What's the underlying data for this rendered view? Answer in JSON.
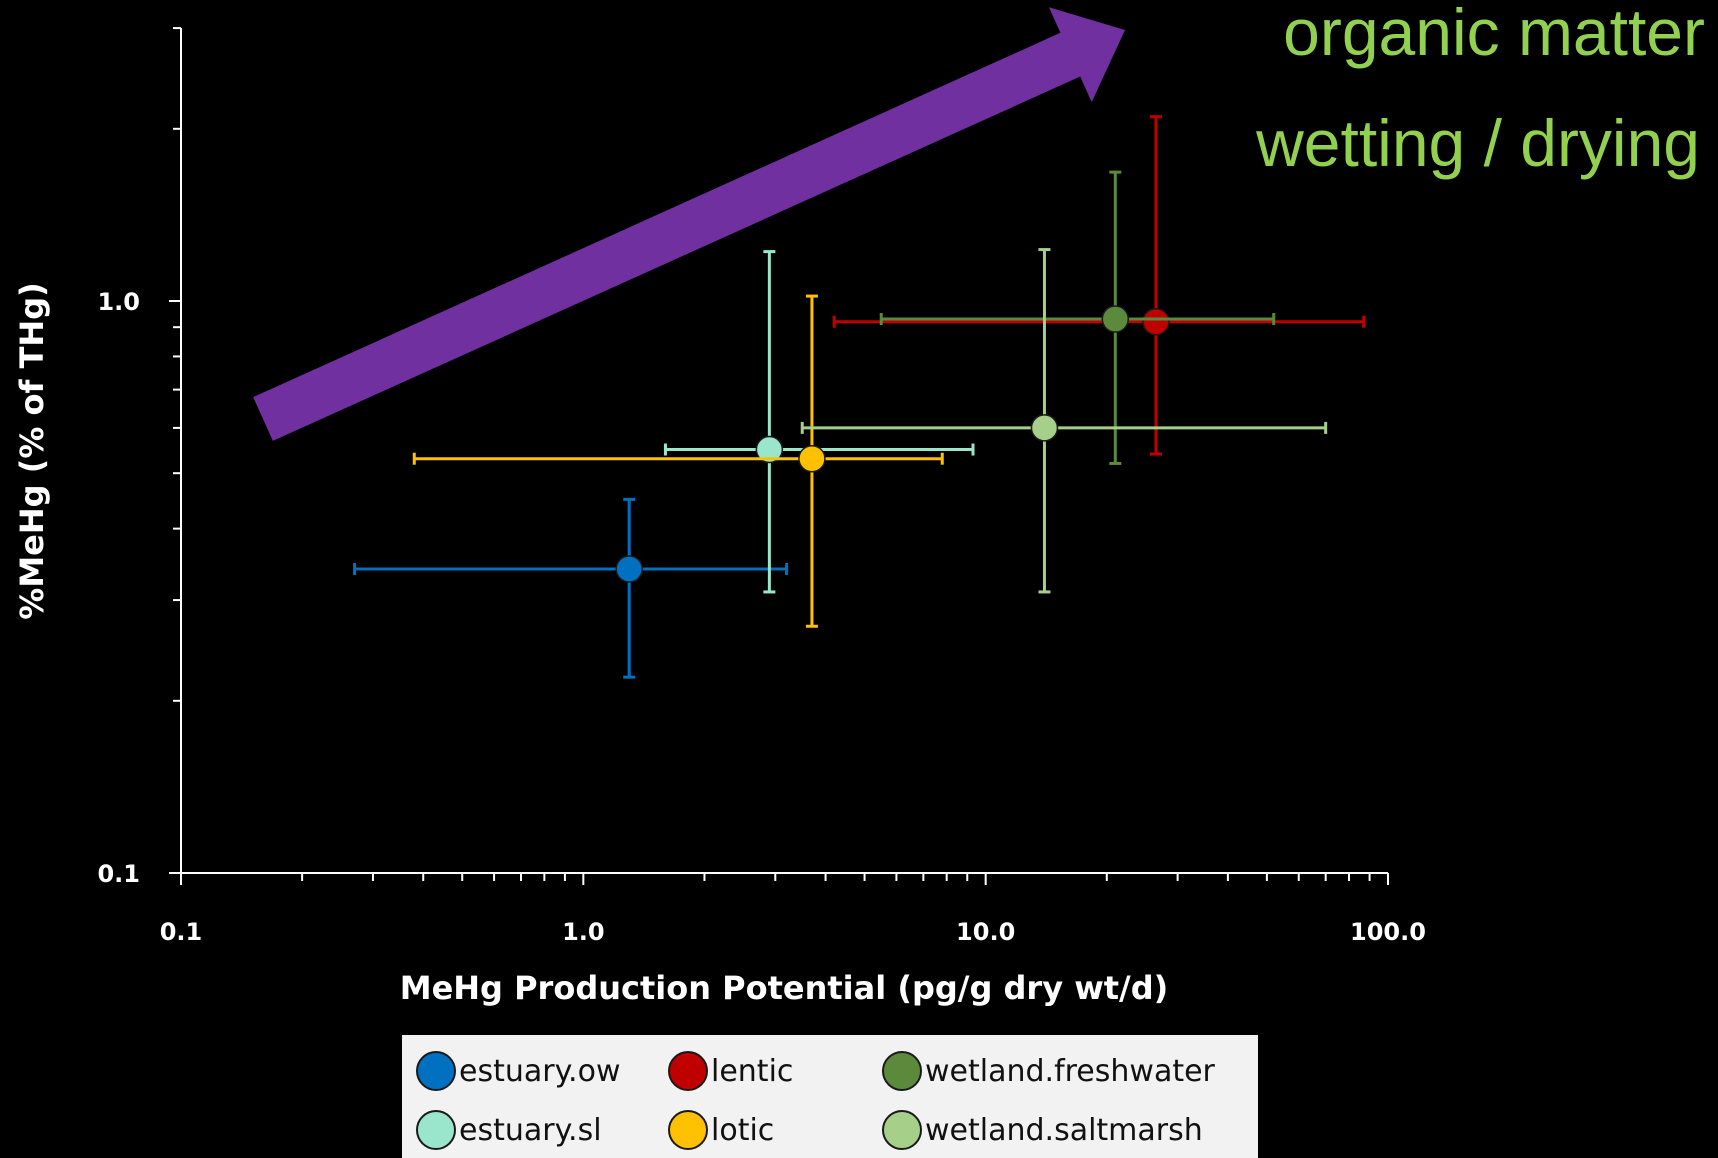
{
  "chart_data": {
    "type": "scatter",
    "xlabel": "MeHg Production Potential (pg/g dry wt/d)",
    "ylabel": "%MeHg (% of THg)",
    "x_scale": "log",
    "y_scale": "log",
    "xlim": [
      0.1,
      100.0
    ],
    "ylim": [
      0.1,
      3.0
    ],
    "x_tick_labels": [
      "0.1",
      "1.0",
      "10.0",
      "100.0"
    ],
    "x_tick_values": [
      0.1,
      1.0,
      10.0,
      100.0
    ],
    "y_tick_labels": [
      "0.1",
      "1.0"
    ],
    "y_tick_values": [
      0.1,
      1.0
    ],
    "grid": false,
    "legend_position": "bottom",
    "annotations": [
      "organic matter",
      "wetting / drying"
    ],
    "annotation_color": "#92d050",
    "arrow_color": "#7030a0",
    "series": [
      {
        "name": "estuary.ow",
        "color": "#0070c0",
        "x": 1.3,
        "y": 0.34,
        "x_err": [
          0.27,
          3.2
        ],
        "y_err": [
          0.22,
          0.45
        ]
      },
      {
        "name": "lentic",
        "color": "#c00000",
        "x": 26.5,
        "y": 0.92,
        "x_err": [
          4.2,
          87.0
        ],
        "y_err": [
          0.54,
          2.1
        ]
      },
      {
        "name": "wetland.freshwater",
        "color": "#5b8a3c",
        "x": 21.0,
        "y": 0.93,
        "x_err": [
          5.5,
          52.0
        ],
        "y_err": [
          0.52,
          1.68
        ]
      },
      {
        "name": "estuary.sl",
        "color": "#99e6cc",
        "x": 2.9,
        "y": 0.55,
        "x_err": [
          1.6,
          9.3
        ],
        "y_err": [
          0.31,
          1.22
        ]
      },
      {
        "name": "lotic",
        "color": "#ffc000",
        "x": 3.7,
        "y": 0.53,
        "x_err": [
          0.38,
          7.8
        ],
        "y_err": [
          0.27,
          1.02
        ]
      },
      {
        "name": "wetland.saltmarsh",
        "color": "#a6d08a",
        "x": 14.0,
        "y": 0.6,
        "x_err": [
          3.5,
          70.0
        ],
        "y_err": [
          0.31,
          1.23
        ]
      }
    ]
  }
}
